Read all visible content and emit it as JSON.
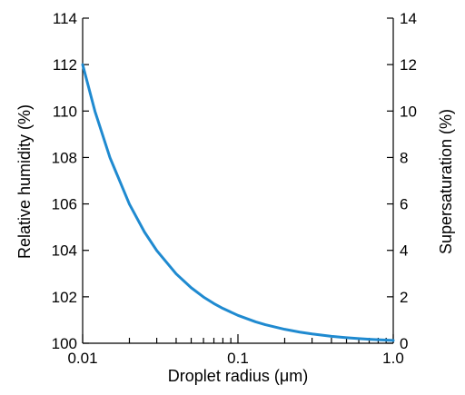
{
  "chart_data": {
    "type": "line",
    "title": "",
    "xlabel": "Droplet radius (μm)",
    "ylabel_left": "Relative humidity (%)",
    "ylabel_right": "Supersaturation (%)",
    "x_scale": "log",
    "xlim": [
      0.01,
      1.0
    ],
    "ylim_left": [
      100,
      114
    ],
    "ylim_right": [
      0,
      14
    ],
    "x_ticks": [
      {
        "value": 0.01,
        "label": "0.01"
      },
      {
        "value": 0.1,
        "label": "0.1"
      },
      {
        "value": 1.0,
        "label": "1.0"
      }
    ],
    "y_left_ticks": [
      {
        "value": 100,
        "label": "100"
      },
      {
        "value": 102,
        "label": "102"
      },
      {
        "value": 104,
        "label": "104"
      },
      {
        "value": 106,
        "label": "106"
      },
      {
        "value": 108,
        "label": "108"
      },
      {
        "value": 110,
        "label": "110"
      },
      {
        "value": 112,
        "label": "112"
      },
      {
        "value": 114,
        "label": "114"
      }
    ],
    "y_right_ticks": [
      {
        "value": 0,
        "label": "0"
      },
      {
        "value": 2,
        "label": "2"
      },
      {
        "value": 4,
        "label": "4"
      },
      {
        "value": 6,
        "label": "6"
      },
      {
        "value": 8,
        "label": "8"
      },
      {
        "value": 10,
        "label": "10"
      },
      {
        "value": 12,
        "label": "12"
      },
      {
        "value": 14,
        "label": "14"
      }
    ],
    "grid": false,
    "line_color": "#1f8ad0",
    "series": [
      {
        "x": [
          0.01,
          0.012,
          0.015,
          0.02,
          0.025,
          0.03,
          0.04,
          0.05,
          0.06,
          0.07,
          0.08,
          0.1,
          0.13,
          0.15,
          0.2,
          0.25,
          0.3,
          0.4,
          0.5,
          0.6,
          0.7,
          0.8,
          1.0
        ],
        "y": [
          112.0,
          109.99,
          107.99,
          105.99,
          104.79,
          103.99,
          102.99,
          102.39,
          101.99,
          101.71,
          101.5,
          101.2,
          100.92,
          100.8,
          100.6,
          100.48,
          100.4,
          100.3,
          100.24,
          100.2,
          100.17,
          100.15,
          100.12
        ]
      }
    ]
  }
}
